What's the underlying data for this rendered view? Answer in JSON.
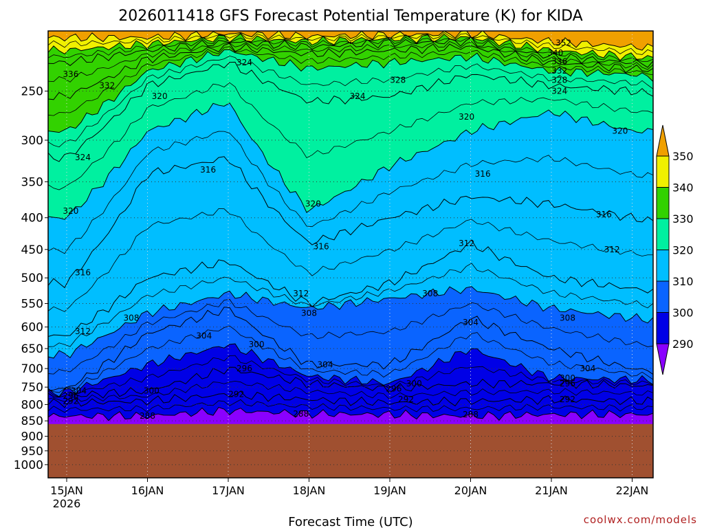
{
  "chart_data": {
    "type": "heatmap",
    "title": "2026011418 GFS Forecast Potential Temperature (K) for KIDA",
    "xlabel": "Forecast Time (UTC)",
    "ylabel": "",
    "y_scale": "log",
    "ylim": [
      1050,
      200
    ],
    "y_ticks": [
      250,
      300,
      350,
      400,
      450,
      500,
      550,
      600,
      650,
      700,
      750,
      800,
      850,
      900,
      950,
      1000
    ],
    "x_ticks": [
      {
        "label": "15JAN",
        "sub": "2026"
      },
      {
        "label": "16JAN",
        "sub": ""
      },
      {
        "label": "17JAN",
        "sub": ""
      },
      {
        "label": "18JAN",
        "sub": ""
      },
      {
        "label": "19JAN",
        "sub": ""
      },
      {
        "label": "20JAN",
        "sub": ""
      },
      {
        "label": "21JAN",
        "sub": ""
      },
      {
        "label": "22JAN",
        "sub": ""
      }
    ],
    "grid": true,
    "colorbar": {
      "levels": [
        290,
        300,
        310,
        320,
        330,
        340,
        350
      ],
      "colors": [
        "#8a00ff",
        "#0000e6",
        "#0a64ff",
        "#00beff",
        "#00f0a0",
        "#32d200",
        "#f0f000",
        "#f0a000"
      ]
    },
    "terrain_color": "#a05030",
    "surface_pressure": 860,
    "x_hours": [
      0,
      24,
      48,
      72,
      96,
      120,
      144,
      168,
      180
    ],
    "isentrope_levels": [
      288,
      292,
      296,
      300,
      304,
      308,
      312,
      316,
      320,
      324,
      328,
      332,
      336,
      340,
      352
    ],
    "isentrope_pressures": [
      [
        835,
        835,
        818,
        828,
        830,
        835,
        830,
        830,
        830
      ],
      [
        795,
        790,
        770,
        785,
        795,
        790,
        785,
        790,
        790
      ],
      [
        775,
        760,
        700,
        740,
        755,
        740,
        740,
        745,
        750
      ],
      [
        765,
        690,
        640,
        720,
        740,
        650,
        725,
        730,
        735
      ],
      [
        755,
        615,
        560,
        690,
        690,
        580,
        650,
        700,
        715
      ],
      [
        665,
        570,
        530,
        560,
        540,
        520,
        560,
        580,
        590
      ],
      [
        620,
        500,
        470,
        550,
        510,
        440,
        500,
        520,
        530
      ],
      [
        510,
        340,
        320,
        440,
        400,
        370,
        380,
        400,
        410
      ],
      [
        400,
        290,
        260,
        390,
        330,
        290,
        270,
        290,
        290
      ],
      [
        320,
        245,
        225,
        260,
        255,
        235,
        245,
        250,
        255
      ],
      [
        290,
        232,
        215,
        230,
        225,
        220,
        232,
        235,
        240
      ],
      [
        255,
        222,
        212,
        218,
        215,
        212,
        225,
        230,
        232
      ],
      [
        225,
        215,
        208,
        212,
        209,
        208,
        220,
        225,
        227
      ],
      [
        215,
        210,
        205,
        208,
        206,
        205,
        215,
        220,
        222
      ],
      [
        205,
        205,
        202,
        204,
        203,
        202,
        208,
        212,
        214
      ]
    ],
    "contour_labels": [
      {
        "text": "288",
        "day": 1.0,
        "p": 835
      },
      {
        "text": "288",
        "day": 2.9,
        "p": 828
      },
      {
        "text": "288",
        "day": 5.0,
        "p": 830
      },
      {
        "text": "292",
        "day": 0.05,
        "p": 790
      },
      {
        "text": "292",
        "day": 2.1,
        "p": 770
      },
      {
        "text": "292",
        "day": 4.2,
        "p": 785
      },
      {
        "text": "292",
        "day": 6.2,
        "p": 785
      },
      {
        "text": "296",
        "day": 0.05,
        "p": 775
      },
      {
        "text": "296",
        "day": 2.2,
        "p": 700
      },
      {
        "text": "296",
        "day": 4.05,
        "p": 755
      },
      {
        "text": "296",
        "day": 6.2,
        "p": 740
      },
      {
        "text": "300",
        "day": 1.05,
        "p": 760
      },
      {
        "text": "300",
        "day": 2.35,
        "p": 640
      },
      {
        "text": "300",
        "day": 4.3,
        "p": 740
      },
      {
        "text": "300",
        "day": 6.2,
        "p": 725
      },
      {
        "text": "304",
        "day": 0.15,
        "p": 760
      },
      {
        "text": "304",
        "day": 1.7,
        "p": 620
      },
      {
        "text": "304",
        "day": 3.2,
        "p": 690
      },
      {
        "text": "304",
        "day": 5.0,
        "p": 590
      },
      {
        "text": "304",
        "day": 6.45,
        "p": 700
      },
      {
        "text": "308",
        "day": 0.8,
        "p": 580
      },
      {
        "text": "308",
        "day": 3.0,
        "p": 570
      },
      {
        "text": "308",
        "day": 4.5,
        "p": 530
      },
      {
        "text": "308",
        "day": 6.2,
        "p": 580
      },
      {
        "text": "312",
        "day": 0.2,
        "p": 610
      },
      {
        "text": "312",
        "day": 2.9,
        "p": 530
      },
      {
        "text": "312",
        "day": 4.95,
        "p": 440
      },
      {
        "text": "312",
        "day": 6.75,
        "p": 450
      },
      {
        "text": "316",
        "day": 0.2,
        "p": 490
      },
      {
        "text": "316",
        "day": 1.75,
        "p": 335
      },
      {
        "text": "316",
        "day": 3.15,
        "p": 445
      },
      {
        "text": "316",
        "day": 5.15,
        "p": 340
      },
      {
        "text": "316",
        "day": 6.65,
        "p": 395
      },
      {
        "text": "320",
        "day": 0.05,
        "p": 390
      },
      {
        "text": "320",
        "day": 1.15,
        "p": 255
      },
      {
        "text": "320",
        "day": 3.05,
        "p": 380
      },
      {
        "text": "320",
        "day": 4.95,
        "p": 275
      },
      {
        "text": "320",
        "day": 6.85,
        "p": 290
      },
      {
        "text": "324",
        "day": 0.2,
        "p": 320
      },
      {
        "text": "324",
        "day": 2.2,
        "p": 225
      },
      {
        "text": "324",
        "day": 3.6,
        "p": 255
      },
      {
        "text": "324",
        "day": 6.1,
        "p": 250
      },
      {
        "text": "328",
        "day": 4.1,
        "p": 240
      },
      {
        "text": "328",
        "day": 6.1,
        "p": 240
      },
      {
        "text": "332",
        "day": 0.5,
        "p": 245
      },
      {
        "text": "332",
        "day": 6.1,
        "p": 232
      },
      {
        "text": "336",
        "day": 0.05,
        "p": 235
      },
      {
        "text": "336",
        "day": 6.1,
        "p": 224
      },
      {
        "text": "340",
        "day": 6.05,
        "p": 217
      },
      {
        "text": "352",
        "day": 6.15,
        "p": 209
      }
    ]
  },
  "credit": "coolwx.com/models"
}
